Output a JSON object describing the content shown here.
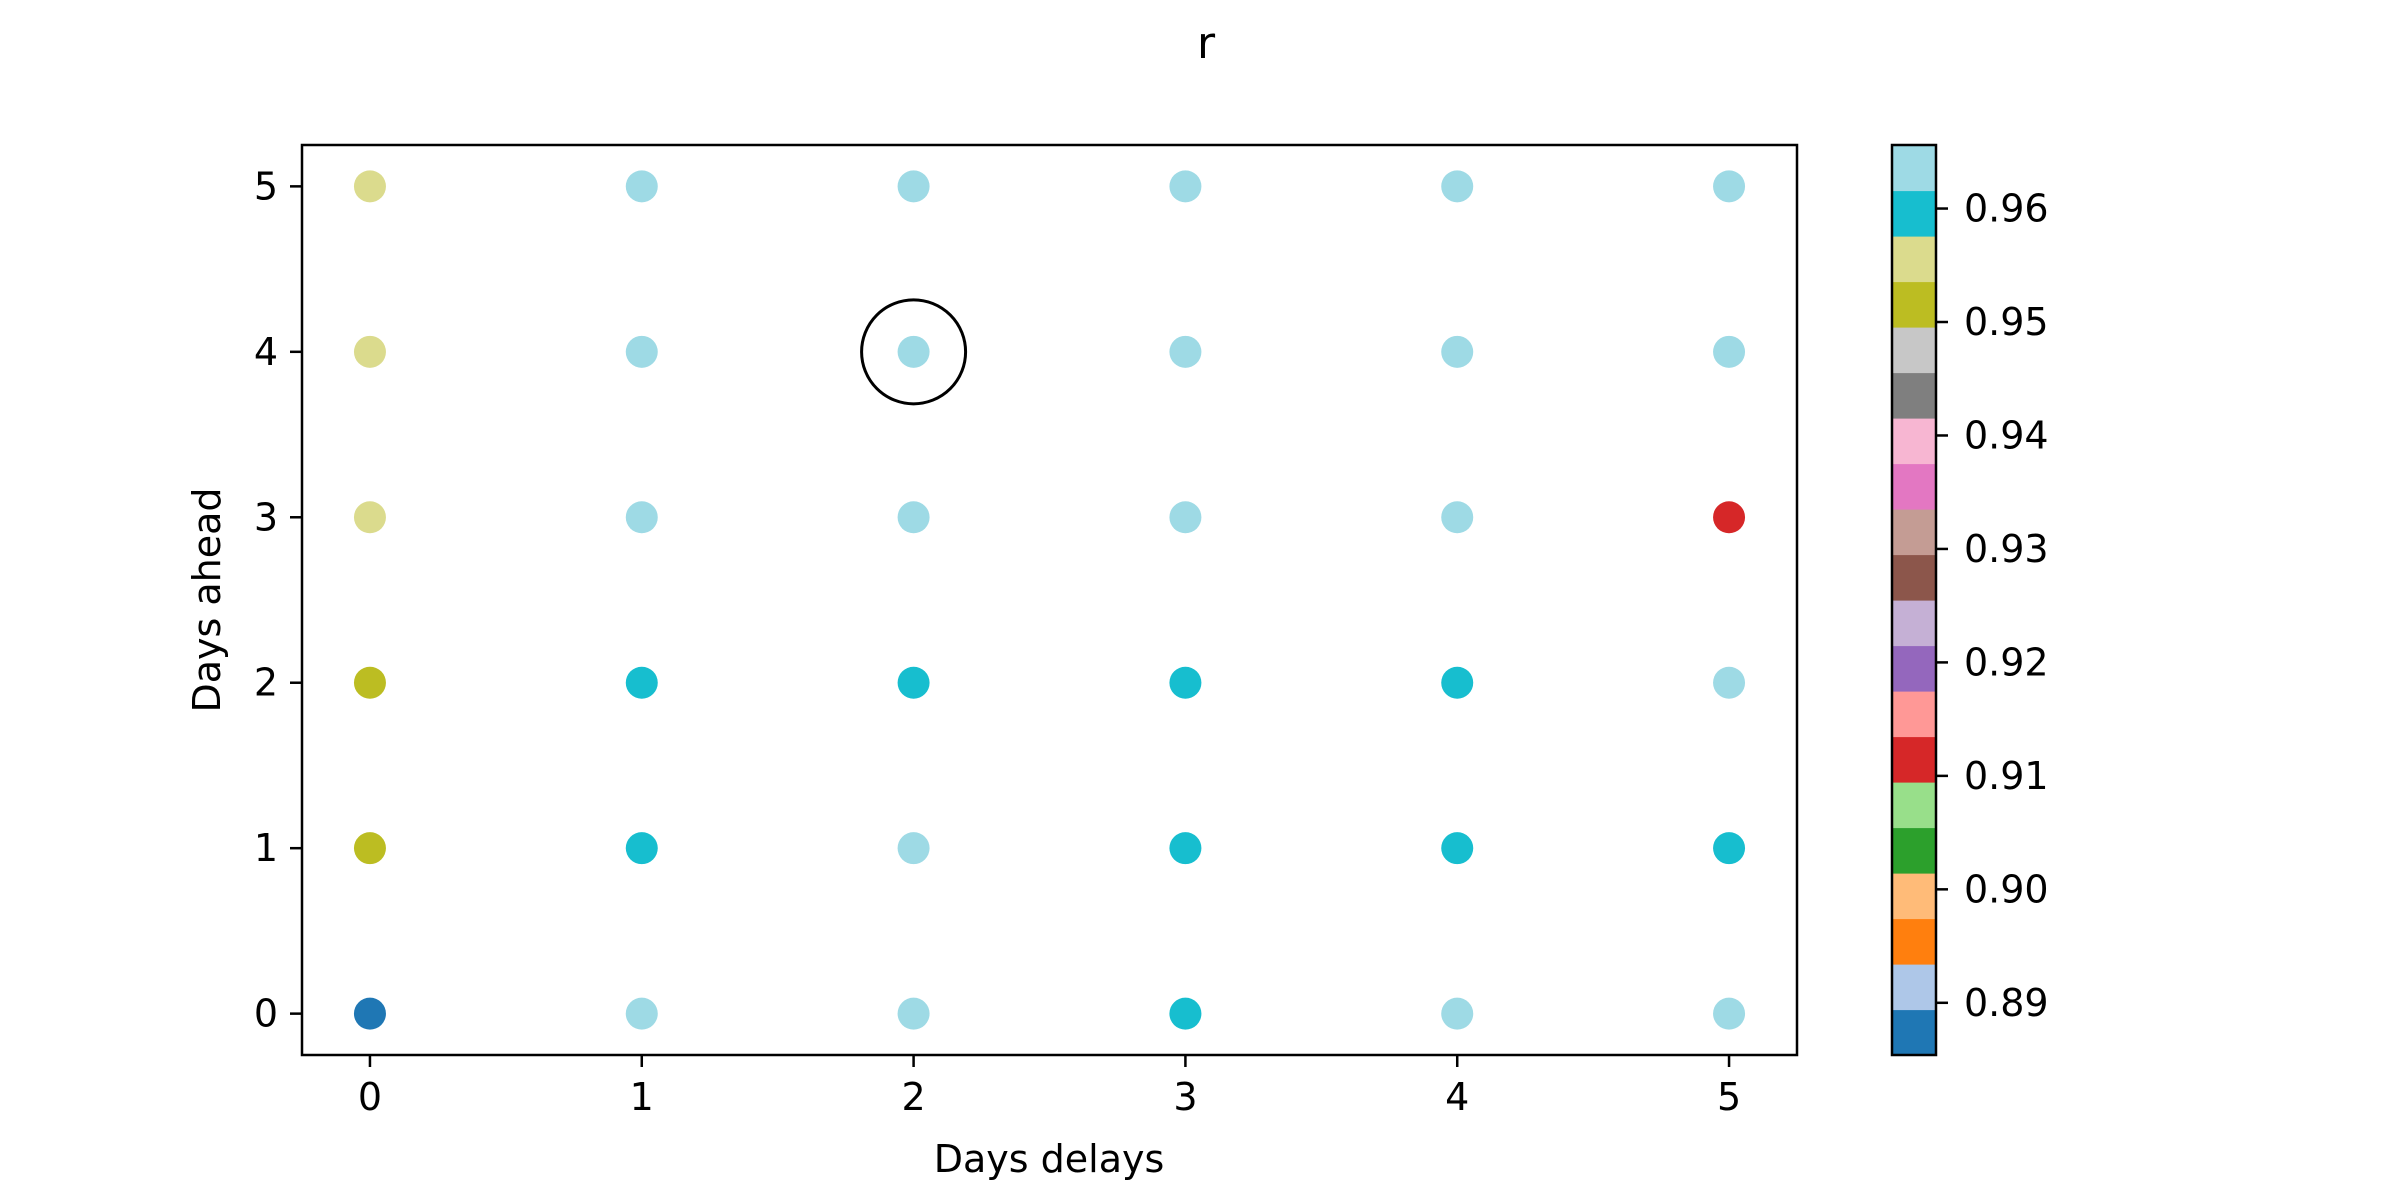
{
  "chart_data": {
    "type": "scatter",
    "title": "r",
    "xlabel": "Days delays",
    "ylabel": "Days ahead",
    "xlim": [
      -0.25,
      5.25
    ],
    "ylim": [
      -0.25,
      5.25
    ],
    "xticks": [
      0,
      1,
      2,
      3,
      4,
      5
    ],
    "yticks": [
      0,
      1,
      2,
      3,
      4,
      5
    ],
    "grid": false,
    "highlight": {
      "x": 2,
      "y": 4
    },
    "colorbar": {
      "range": [
        0.8854,
        0.9656
      ],
      "colors": [
        "#1f77b4",
        "#aec7e8",
        "#ff7f0e",
        "#ffbb78",
        "#2ca02c",
        "#98df8a",
        "#d62728",
        "#ff9896",
        "#9467bd",
        "#c5b0d5",
        "#8c564b",
        "#c49c94",
        "#e377c2",
        "#f7b6d2",
        "#7f7f7f",
        "#c7c7c7",
        "#bcbd22",
        "#dbdb8d",
        "#17becf",
        "#9edae5"
      ],
      "tick_values": [
        0.89,
        0.9,
        0.91,
        0.92,
        0.93,
        0.94,
        0.95,
        0.96
      ],
      "tick_labels": [
        "0.89",
        "0.90",
        "0.91",
        "0.92",
        "0.93",
        "0.94",
        "0.95",
        "0.96"
      ]
    },
    "points": [
      {
        "x": 0,
        "y": 0,
        "value": 0.887
      },
      {
        "x": 1,
        "y": 0,
        "value": 0.964
      },
      {
        "x": 2,
        "y": 0,
        "value": 0.964
      },
      {
        "x": 3,
        "y": 0,
        "value": 0.961
      },
      {
        "x": 4,
        "y": 0,
        "value": 0.964
      },
      {
        "x": 5,
        "y": 0,
        "value": 0.964
      },
      {
        "x": 0,
        "y": 1,
        "value": 0.951
      },
      {
        "x": 1,
        "y": 1,
        "value": 0.961
      },
      {
        "x": 2,
        "y": 1,
        "value": 0.964
      },
      {
        "x": 3,
        "y": 1,
        "value": 0.961
      },
      {
        "x": 4,
        "y": 1,
        "value": 0.961
      },
      {
        "x": 5,
        "y": 1,
        "value": 0.961
      },
      {
        "x": 0,
        "y": 2,
        "value": 0.951
      },
      {
        "x": 1,
        "y": 2,
        "value": 0.961
      },
      {
        "x": 2,
        "y": 2,
        "value": 0.961
      },
      {
        "x": 3,
        "y": 2,
        "value": 0.961
      },
      {
        "x": 4,
        "y": 2,
        "value": 0.961
      },
      {
        "x": 5,
        "y": 2,
        "value": 0.964
      },
      {
        "x": 0,
        "y": 3,
        "value": 0.955
      },
      {
        "x": 1,
        "y": 3,
        "value": 0.964
      },
      {
        "x": 2,
        "y": 3,
        "value": 0.964
      },
      {
        "x": 3,
        "y": 3,
        "value": 0.964
      },
      {
        "x": 4,
        "y": 3,
        "value": 0.964
      },
      {
        "x": 5,
        "y": 3,
        "value": 0.911
      },
      {
        "x": 0,
        "y": 4,
        "value": 0.955
      },
      {
        "x": 1,
        "y": 4,
        "value": 0.964
      },
      {
        "x": 2,
        "y": 4,
        "value": 0.964
      },
      {
        "x": 3,
        "y": 4,
        "value": 0.964
      },
      {
        "x": 4,
        "y": 4,
        "value": 0.964
      },
      {
        "x": 5,
        "y": 4,
        "value": 0.964
      },
      {
        "x": 0,
        "y": 5,
        "value": 0.955
      },
      {
        "x": 1,
        "y": 5,
        "value": 0.964
      },
      {
        "x": 2,
        "y": 5,
        "value": 0.964
      },
      {
        "x": 3,
        "y": 5,
        "value": 0.964
      },
      {
        "x": 4,
        "y": 5,
        "value": 0.964
      },
      {
        "x": 5,
        "y": 5,
        "value": 0.964
      }
    ]
  }
}
